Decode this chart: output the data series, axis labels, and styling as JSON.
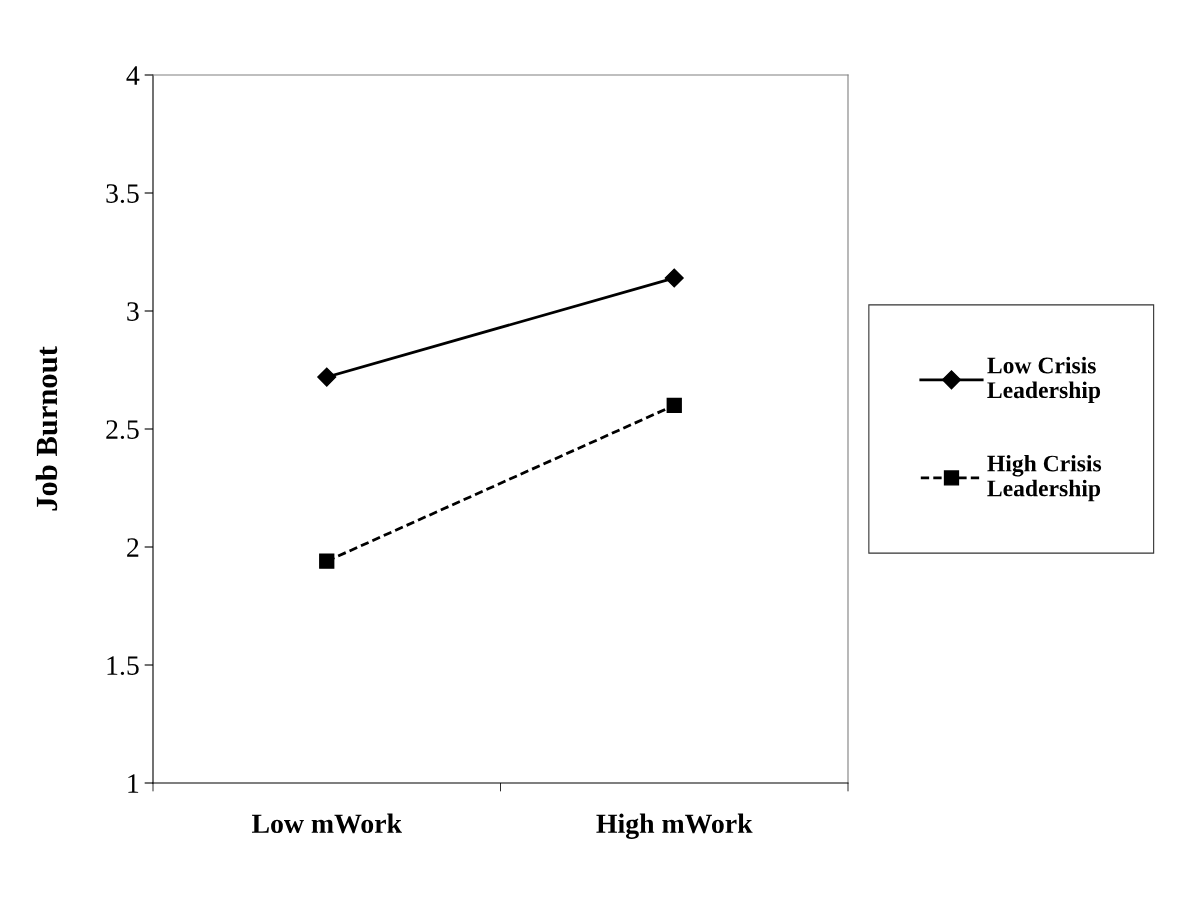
{
  "chart_data": {
    "type": "line",
    "ylabel": "Job Burnout",
    "categories": [
      "Low mWork",
      "High mWork"
    ],
    "series": [
      {
        "name": "Low Crisis\nLeadership",
        "color": "#000000",
        "values": [
          2.72,
          3.14
        ],
        "marker": "diamond",
        "line_style": "solid"
      },
      {
        "name": "High Crisis\nLeadership",
        "color": "#000000",
        "values": [
          1.94,
          2.6
        ],
        "marker": "square",
        "line_style": "dashed"
      }
    ],
    "ylim": [
      1,
      4
    ],
    "yticks": [
      1,
      1.5,
      2,
      2.5,
      3,
      3.5,
      4
    ],
    "grid": false,
    "legend": "right"
  }
}
